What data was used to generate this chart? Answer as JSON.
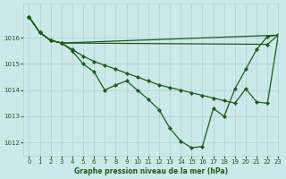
{
  "xlabel": "Graphe pression niveau de la mer (hPa)",
  "xlim": [
    -0.5,
    23
  ],
  "ylim": [
    1011.5,
    1017.3
  ],
  "yticks": [
    1012,
    1013,
    1014,
    1015,
    1016
  ],
  "xticks": [
    0,
    1,
    2,
    3,
    4,
    5,
    6,
    7,
    8,
    9,
    10,
    11,
    12,
    13,
    14,
    15,
    16,
    17,
    18,
    19,
    20,
    21,
    22,
    23
  ],
  "bg_color": "#cce8e8",
  "grid_color": "#aad4d4",
  "line_color": "#1a5c1a",
  "markersize": 2.2,
  "linewidth": 0.9,
  "series": [
    {
      "x": [
        0,
        1,
        2,
        3,
        4,
        5,
        6,
        7,
        8,
        9,
        10,
        11,
        12,
        13,
        14,
        15,
        16,
        17,
        18,
        19,
        20,
        21,
        22,
        23
      ],
      "y": [
        1016.8,
        1016.2,
        1015.9,
        1015.8,
        1015.5,
        1015.0,
        1014.7,
        1014.0,
        1014.2,
        1014.35,
        1014.0,
        1013.65,
        1013.25,
        1012.55,
        1012.05,
        1011.8,
        1011.85,
        1013.3,
        1013.0,
        1014.05,
        1014.8,
        1015.55,
        1016.05,
        1016.1
      ]
    },
    {
      "x": [
        0,
        1,
        2,
        3,
        23
      ],
      "y": [
        1016.8,
        1016.2,
        1015.9,
        1015.8,
        1016.1
      ]
    },
    {
      "x": [
        0,
        1,
        2,
        3,
        22,
        23
      ],
      "y": [
        1016.8,
        1016.2,
        1015.9,
        1015.8,
        1015.75,
        1016.1
      ]
    },
    {
      "x": [
        0,
        1,
        2,
        3,
        4,
        5,
        6,
        7,
        8,
        9,
        10,
        11,
        12,
        13,
        14,
        15,
        16,
        17,
        18,
        19,
        20,
        21,
        22,
        23
      ],
      "y": [
        1016.8,
        1016.2,
        1015.9,
        1015.8,
        1015.55,
        1015.3,
        1015.1,
        1014.95,
        1014.8,
        1014.65,
        1014.5,
        1014.35,
        1014.2,
        1014.1,
        1014.0,
        1013.9,
        1013.8,
        1013.7,
        1013.6,
        1013.5,
        1014.05,
        1013.55,
        1013.5,
        1016.1
      ]
    }
  ]
}
